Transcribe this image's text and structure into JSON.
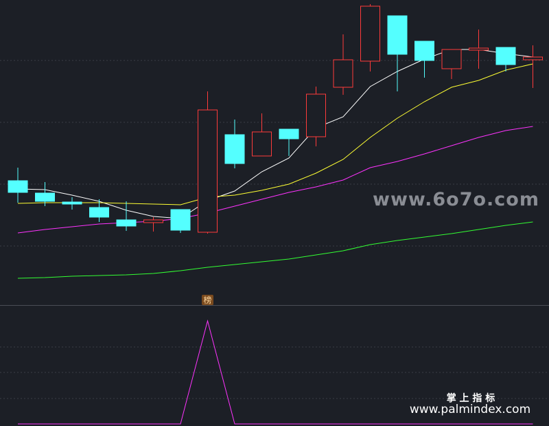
{
  "chart_data": [
    {
      "type": "candlestick",
      "categories": [
        null,
        null,
        null,
        null,
        null,
        null,
        null,
        null,
        null,
        null,
        null,
        null,
        null,
        null,
        null,
        null,
        null,
        null,
        null,
        null
      ],
      "open": [
        177,
        159,
        146,
        138,
        120,
        116,
        135,
        102,
        244,
        213,
        252,
        241,
        313,
        351,
        417,
        380,
        340,
        367,
        371,
        353
      ],
      "high": [
        196,
        175,
        153,
        150,
        147,
        124,
        135,
        307,
        266,
        275,
        252,
        314,
        390,
        434,
        417,
        380,
        368,
        397,
        371,
        374
      ],
      "low": [
        145,
        140,
        135,
        117,
        104,
        103,
        101,
        100,
        195,
        213,
        213,
        227,
        302,
        336,
        307,
        327,
        325,
        340,
        336,
        312
      ],
      "close": [
        160,
        147,
        143,
        124,
        111,
        120,
        105,
        280,
        202,
        248,
        238,
        303,
        353,
        431,
        361,
        352,
        368,
        370,
        346,
        357
      ],
      "up_color": "#ff3b3b",
      "down_color": "#54ffff",
      "ylim": [
        0,
        440
      ],
      "lines": [
        {
          "color": "#ffffff",
          "values": [
            165,
            164,
            156,
            147,
            134,
            125,
            122,
            148,
            162,
            190,
            210,
            254,
            270,
            314,
            336,
            354,
            368,
            368,
            362,
            357
          ]
        },
        {
          "color": "#ffff33",
          "values": [
            144,
            145,
            145,
            145,
            144,
            143,
            142,
            153,
            156,
            163,
            172,
            188,
            208,
            240,
            268,
            292,
            313,
            323,
            338,
            347
          ]
        },
        {
          "color": "#ff33ff",
          "values": [
            101,
            106,
            110,
            114,
            116,
            118,
            122,
            130,
            140,
            150,
            160,
            168,
            178,
            196,
            205,
            216,
            228,
            240,
            250,
            256
          ]
        },
        {
          "color": "#33ff33",
          "values": [
            35,
            36,
            38,
            39,
            40,
            42,
            46,
            51,
            55,
            59,
            63,
            69,
            75,
            84,
            90,
            95,
            100,
            106,
            112,
            117
          ]
        }
      ]
    },
    {
      "type": "line",
      "categories": [
        null,
        null,
        null,
        null,
        null,
        null,
        null,
        null,
        null,
        null,
        null,
        null,
        null,
        null,
        null,
        null,
        null,
        null,
        null,
        null
      ],
      "values": [
        3,
        3,
        3,
        3,
        3,
        3,
        3,
        153,
        3,
        3,
        3,
        3,
        3,
        3,
        3,
        3,
        3,
        3,
        3,
        3
      ],
      "color": "#ff33ff",
      "ylim": [
        0,
        175
      ]
    }
  ],
  "watermark": "www.6o7o.com",
  "badge": "榜",
  "footer": {
    "title": "掌 上 指 标",
    "url": "www.palmindex.com"
  }
}
